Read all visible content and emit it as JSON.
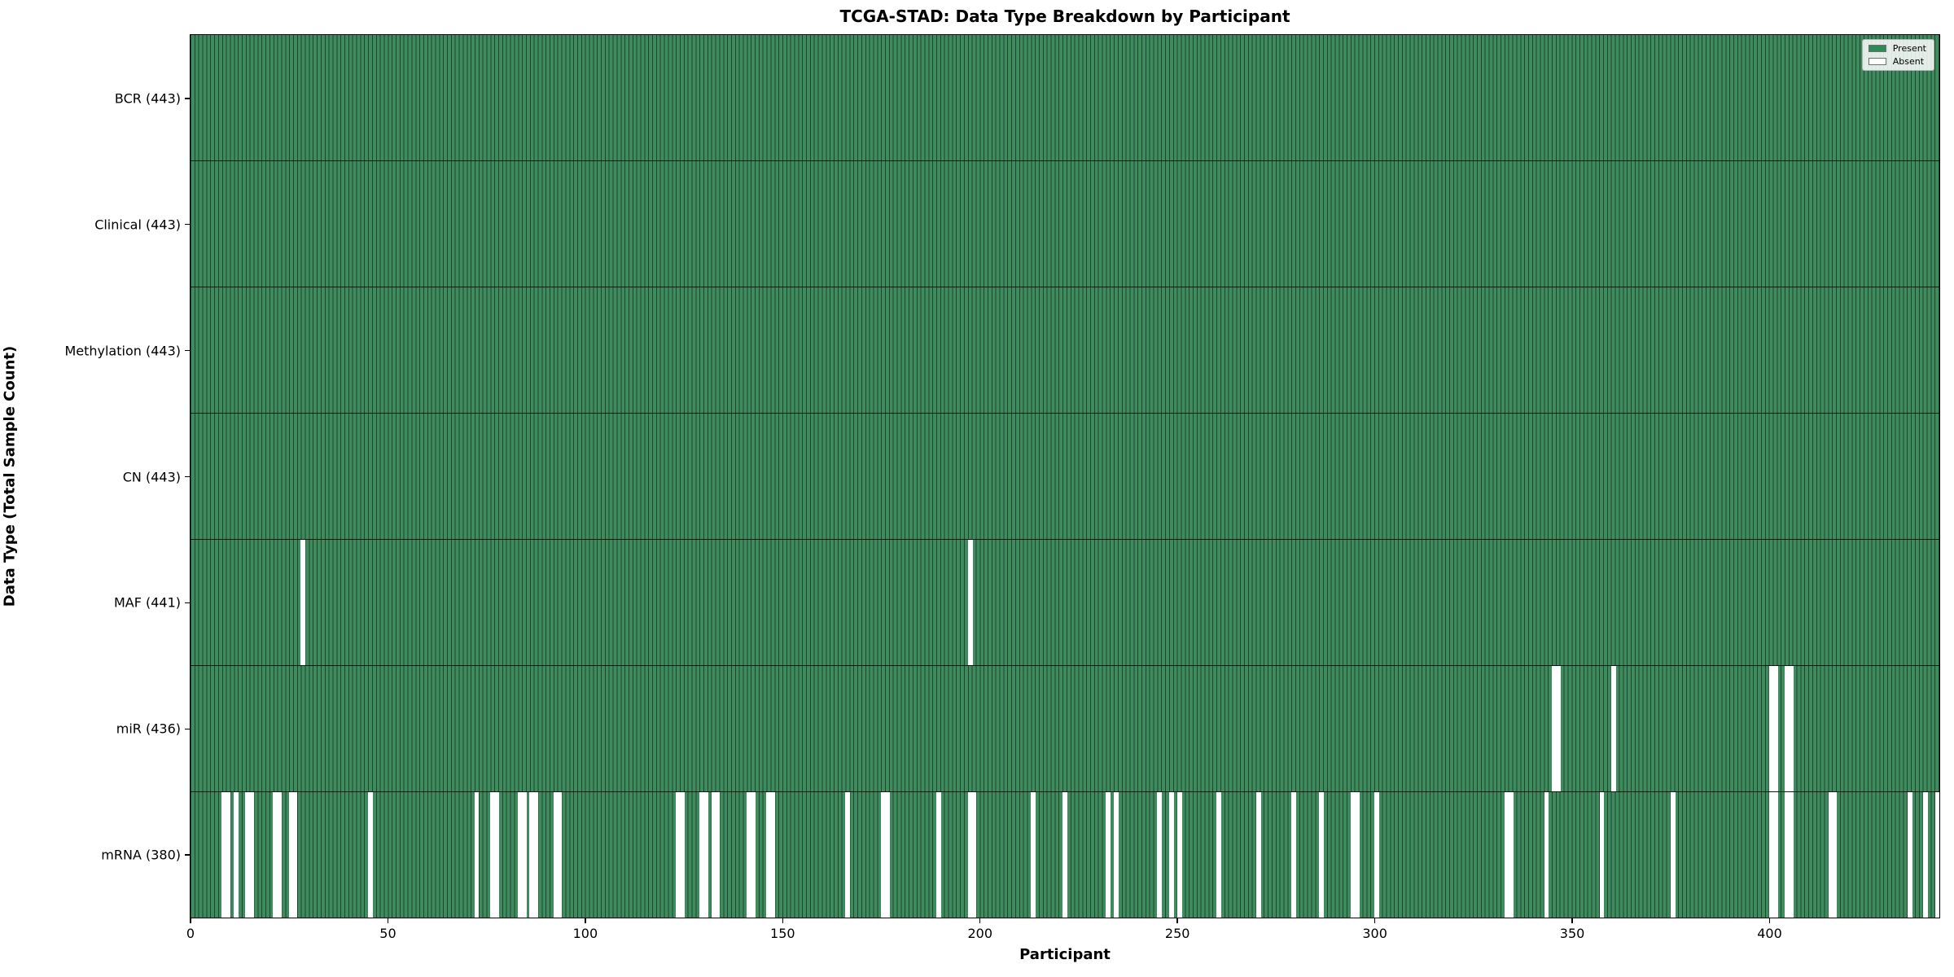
{
  "title": "TCGA-STAD: Data Type Breakdown by Participant",
  "x_axis": {
    "label": "Participant",
    "ticks": [
      0,
      50,
      100,
      150,
      200,
      250,
      300,
      350,
      400
    ]
  },
  "y_axis": {
    "label": "Data Type (Total Sample Count)"
  },
  "legend": [
    {
      "label": "Present",
      "color": "#2e8b57"
    },
    {
      "label": "Absent",
      "color": "#ffffff"
    }
  ],
  "chart_data": {
    "type": "heatmap",
    "title": "TCGA-STAD: Data Type Breakdown by Participant",
    "xlabel": "Participant",
    "ylabel": "Data Type (Total Sample Count)",
    "x_range": [
      0,
      443
    ],
    "n_participants": 443,
    "legend_position": "upper right",
    "colors": {
      "present": "#2e8b57",
      "absent": "#ffffff",
      "cell_edge": "#1c4730"
    },
    "rows": [
      {
        "name": "bcr",
        "label": "BCR (443)",
        "present_count": 443,
        "absent_participants": []
      },
      {
        "name": "clinical",
        "label": "Clinical (443)",
        "present_count": 443,
        "absent_participants": []
      },
      {
        "name": "methylation",
        "label": "Methylation (443)",
        "present_count": 443,
        "absent_participants": []
      },
      {
        "name": "cn",
        "label": "CN (443)",
        "present_count": 443,
        "absent_participants": []
      },
      {
        "name": "maf",
        "label": "MAF (441)",
        "present_count": 441,
        "absent_participants": [
          28,
          197
        ]
      },
      {
        "name": "mir",
        "label": "miR (436)",
        "present_count": 436,
        "absent_participants": [
          345,
          346,
          360,
          400,
          401,
          404,
          405
        ]
      },
      {
        "name": "mrna",
        "label": "mRNA (380)",
        "present_count": 380,
        "absent_participants": [
          8,
          9,
          11,
          14,
          15,
          21,
          22,
          25,
          26,
          45,
          72,
          76,
          77,
          83,
          84,
          86,
          87,
          92,
          93,
          123,
          124,
          129,
          130,
          132,
          133,
          141,
          142,
          146,
          147,
          166,
          175,
          176,
          189,
          197,
          198,
          213,
          221,
          232,
          234,
          245,
          248,
          250,
          260,
          270,
          279,
          286,
          294,
          295,
          300,
          333,
          334,
          343,
          357,
          375,
          400,
          401,
          404,
          405,
          415,
          416,
          435,
          439,
          442
        ]
      }
    ]
  }
}
